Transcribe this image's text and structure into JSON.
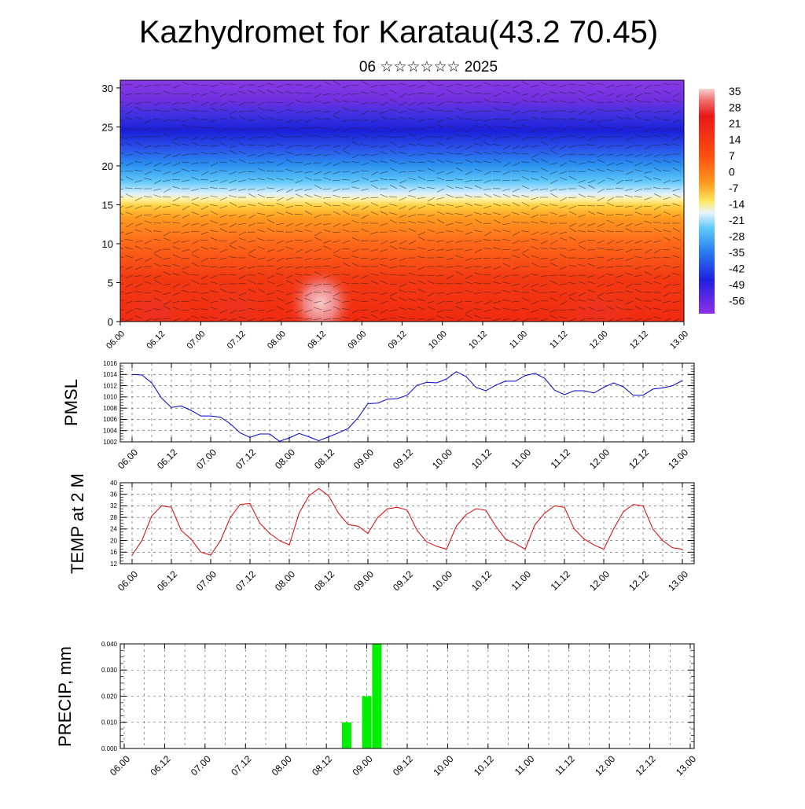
{
  "title": "Kazhydromet for Karatau(43.2 70.45)",
  "subtitle": "06 ☆☆☆☆☆☆ 2025",
  "time_labels": [
    "06.00",
    "06.12",
    "07.00",
    "07.12",
    "08.00",
    "08.12",
    "09.00",
    "09.12",
    "10.00",
    "10.12",
    "11.00",
    "11.12",
    "12.00",
    "12.12",
    "13.00"
  ],
  "chart_data": [
    {
      "type": "heatmap",
      "description": "Temperature cross-section with wind barbs",
      "y_ticks": [
        "0",
        "5",
        "10",
        "15",
        "20",
        "25",
        "30"
      ],
      "ylim": [
        0,
        31
      ],
      "colorbar_labels": [
        "35",
        "28",
        "21",
        "14",
        "7",
        "0",
        "-7",
        "-14",
        "-21",
        "-28",
        "-35",
        "-42",
        "-49",
        "-56"
      ],
      "colors": {
        "top": "#8a2be2",
        "upper": "#2a2ee0",
        "mid_blue": "#3ab0f0",
        "light": "#dff0ff",
        "yellow": "#ffe04a",
        "orange": "#ff8a20",
        "red": "#f23010",
        "hot": "#f5b0b0"
      }
    },
    {
      "type": "line",
      "ylabel": "PMSL",
      "ylim": [
        1002,
        1016
      ],
      "y_ticks": [
        "1002",
        "1004",
        "1006",
        "1008",
        "1010",
        "1012",
        "1014",
        "1016"
      ],
      "color": "#0000cc",
      "x_labels": [
        "06.00",
        "06.12",
        "07.00",
        "07.12",
        "08.00",
        "08.12",
        "09.00",
        "09.12",
        "10.00",
        "10.12",
        "11.00",
        "11.12",
        "12.00",
        "12.12",
        "13.00"
      ],
      "values": [
        1014.0,
        1013.9,
        1012.5,
        1009.8,
        1008.1,
        1008.4,
        1007.6,
        1006.6,
        1006.6,
        1006.4,
        1005.2,
        1003.6,
        1002.8,
        1003.4,
        1003.4,
        1002.1,
        1002.7,
        1003.5,
        1002.9,
        1002.2,
        1002.9,
        1003.6,
        1004.4,
        1006.3,
        1008.8,
        1008.9,
        1009.6,
        1009.7,
        1010.3,
        1012.1,
        1012.6,
        1012.5,
        1013.2,
        1014.5,
        1013.6,
        1011.7,
        1011.1,
        1012.1,
        1012.8,
        1012.8,
        1013.8,
        1014.2,
        1013.3,
        1011.2,
        1010.4,
        1011.1,
        1011.1,
        1010.7,
        1011.7,
        1012.5,
        1011.8,
        1010.3,
        1010.3,
        1011.4,
        1011.6,
        1012.0,
        1012.9
      ]
    },
    {
      "type": "line",
      "ylabel": "TEMP at 2 M",
      "ylim": [
        12,
        40
      ],
      "y_ticks": [
        "12",
        "16",
        "20",
        "24",
        "28",
        "32",
        "36",
        "40"
      ],
      "color": "#dd0000",
      "x_labels": [
        "06.00",
        "06.12",
        "07.00",
        "07.12",
        "08.00",
        "08.12",
        "09.00",
        "09.12",
        "10.00",
        "10.12",
        "11.00",
        "11.12",
        "12.00",
        "12.12",
        "13.00"
      ],
      "values": [
        15,
        20,
        28.5,
        32,
        31.5,
        23.5,
        20.5,
        16,
        15,
        20,
        28,
        32.5,
        32.8,
        26,
        22.5,
        20,
        18.5,
        29.5,
        35.5,
        38,
        35.5,
        29.5,
        25.5,
        25,
        22.5,
        28,
        31,
        31.5,
        30.5,
        23.5,
        19.5,
        18,
        17,
        25,
        29,
        31,
        30.5,
        25,
        20.5,
        19,
        17,
        25.5,
        29.5,
        32,
        31.5,
        24,
        20.5,
        18.5,
        17,
        24,
        30,
        32.5,
        32,
        24,
        20,
        17.5,
        17
      ]
    },
    {
      "type": "bar",
      "ylabel": "PRECIP, mm",
      "ylim": [
        0,
        0.04
      ],
      "y_ticks": [
        "0.000",
        "0.010",
        "0.020",
        "0.030",
        "0.040"
      ],
      "color": "#00ee00",
      "x_labels": [
        "06.00",
        "06.12",
        "07.00",
        "07.12",
        "08.00",
        "08.12",
        "09.00",
        "09.12",
        "10.00",
        "10.12",
        "11.00",
        "11.12",
        "12.00",
        "12.12",
        "13.00"
      ],
      "bars": [
        {
          "time_hours": 66,
          "value": 0.01
        },
        {
          "time_hours": 72,
          "value": 0.02
        },
        {
          "time_hours": 75,
          "value": 0.04
        }
      ]
    }
  ]
}
